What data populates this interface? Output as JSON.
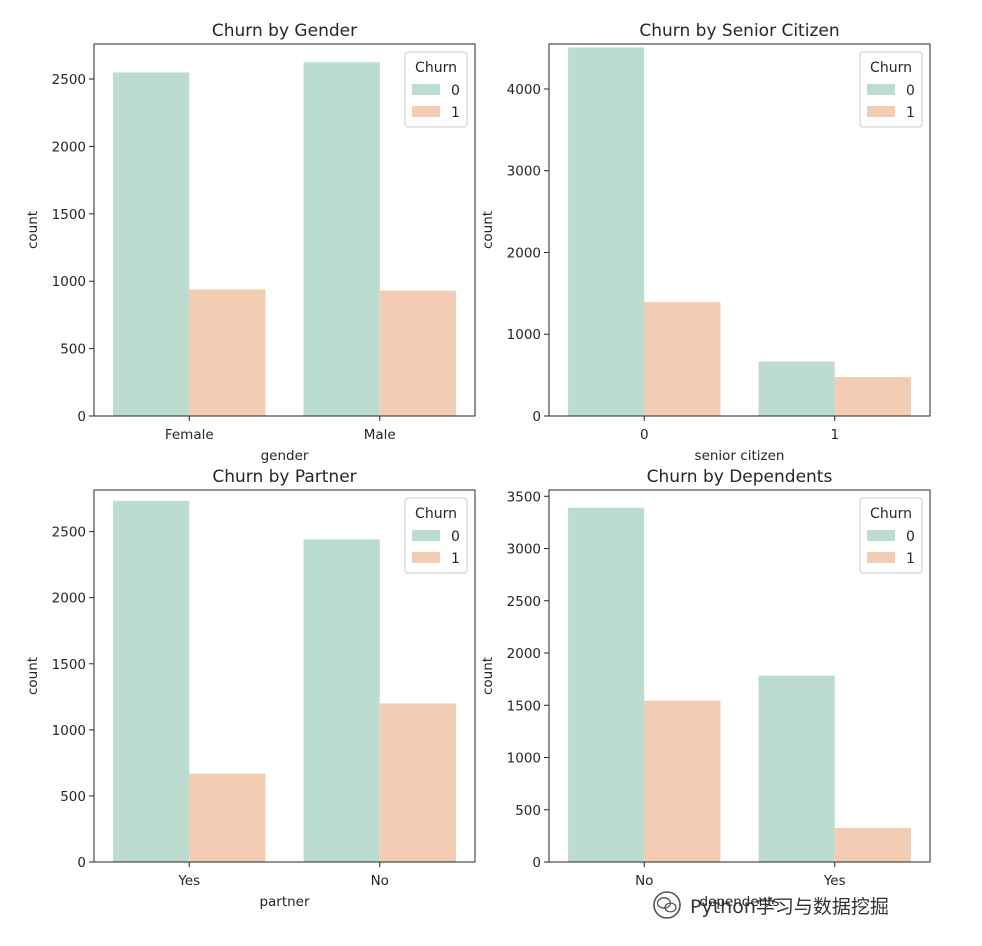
{
  "colors": {
    "series_0": "#bcdccf",
    "series_1": "#f2cdb4",
    "axis": "#262626"
  },
  "chart_data": [
    {
      "type": "bar",
      "title": "Churn by Gender",
      "xlabel": "gender",
      "ylabel": "count",
      "categories": [
        "Female",
        "Male"
      ],
      "ylim": [
        0,
        2760
      ],
      "yticks": [
        0,
        500,
        1000,
        1500,
        2000,
        2500
      ],
      "legend": {
        "title": "Churn",
        "position": "top-right"
      },
      "series": [
        {
          "name": "0",
          "values": [
            2549,
            2625
          ]
        },
        {
          "name": "1",
          "values": [
            939,
            930
          ]
        }
      ]
    },
    {
      "type": "bar",
      "title": "Churn by Senior Citizen",
      "xlabel": "senior citizen",
      "ylabel": "count",
      "categories": [
        "0",
        "1"
      ],
      "ylim": [
        0,
        4550
      ],
      "yticks": [
        0,
        1000,
        2000,
        3000,
        4000
      ],
      "legend": {
        "title": "Churn",
        "position": "top-right"
      },
      "series": [
        {
          "name": "0",
          "values": [
            4508,
            666
          ]
        },
        {
          "name": "1",
          "values": [
            1393,
            476
          ]
        }
      ]
    },
    {
      "type": "bar",
      "title": "Churn by Partner",
      "xlabel": "partner",
      "ylabel": "count",
      "categories": [
        "Yes",
        "No"
      ],
      "ylim": [
        0,
        2815
      ],
      "yticks": [
        0,
        500,
        1000,
        1500,
        2000,
        2500
      ],
      "legend": {
        "title": "Churn",
        "position": "top-right"
      },
      "series": [
        {
          "name": "0",
          "values": [
            2733,
            2441
          ]
        },
        {
          "name": "1",
          "values": [
            669,
            1200
          ]
        }
      ]
    },
    {
      "type": "bar",
      "title": "Churn by Dependents",
      "xlabel": "dependents",
      "ylabel": "count",
      "categories": [
        "No",
        "Yes"
      ],
      "ylim": [
        0,
        3560
      ],
      "yticks": [
        0,
        500,
        1000,
        1500,
        2000,
        2500,
        3000,
        3500
      ],
      "legend": {
        "title": "Churn",
        "position": "top-right"
      },
      "series": [
        {
          "name": "0",
          "values": [
            3390,
            1784
          ]
        },
        {
          "name": "1",
          "values": [
            1543,
            326
          ]
        }
      ]
    }
  ],
  "watermark": {
    "text": "Python学习与数据挖掘"
  }
}
